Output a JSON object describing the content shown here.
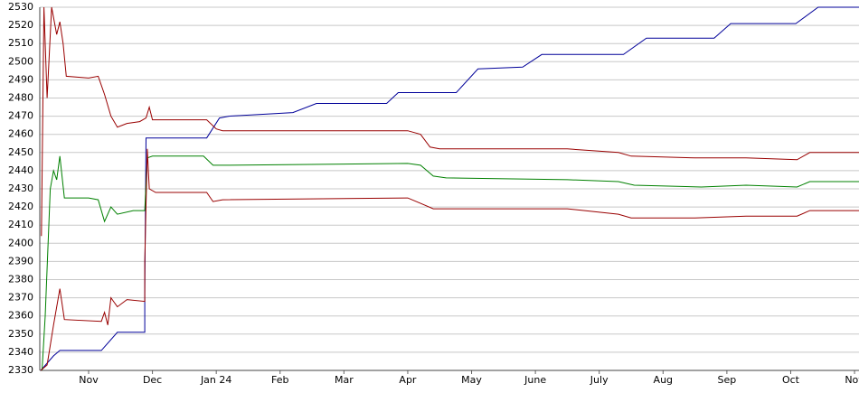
{
  "chart_data": {
    "type": "line",
    "xlim": [
      0.235,
      13.07
    ],
    "ylim": [
      2330,
      2530
    ],
    "xticks": [
      {
        "value": 1,
        "label": "Nov"
      },
      {
        "value": 2,
        "label": "Dec"
      },
      {
        "value": 3,
        "label": "Jan 24"
      },
      {
        "value": 4,
        "label": "Feb"
      },
      {
        "value": 5,
        "label": "Mar"
      },
      {
        "value": 6,
        "label": "Apr"
      },
      {
        "value": 7,
        "label": "May"
      },
      {
        "value": 8,
        "label": "June"
      },
      {
        "value": 9,
        "label": "July"
      },
      {
        "value": 10,
        "label": "Aug"
      },
      {
        "value": 11,
        "label": "Sep"
      },
      {
        "value": 12,
        "label": "Oct"
      },
      {
        "value": 13,
        "label": "Nov"
      }
    ],
    "yticks": [
      2330,
      2340,
      2350,
      2360,
      2370,
      2380,
      2390,
      2400,
      2410,
      2420,
      2430,
      2440,
      2450,
      2460,
      2470,
      2480,
      2490,
      2500,
      2510,
      2520,
      2530
    ],
    "grid": true,
    "series": [
      {
        "color": "#000099",
        "x": [
          0.25,
          0.45,
          0.55,
          1.2,
          1.45,
          1.88,
          1.88,
          1.9,
          2.85,
          3.05,
          3.2,
          3.7,
          4.2,
          4.57,
          5.67,
          5.85,
          6.76,
          7.1,
          7.8,
          8.1,
          9.38,
          9.74,
          10.8,
          11.06,
          12.08,
          12.43,
          13.07
        ],
        "values": [
          2330,
          2338,
          2341,
          2341,
          2351,
          2351,
          2373,
          2458,
          2458,
          2469,
          2470,
          2471,
          2472,
          2477,
          2477,
          2483,
          2483,
          2496,
          2497,
          2504,
          2504,
          2513,
          2513,
          2521,
          2521,
          2530,
          2530
        ]
      },
      {
        "color": "#990000",
        "x": [
          0.26,
          0.3,
          0.35,
          0.42,
          0.5,
          0.55,
          0.6,
          0.65,
          1.0,
          1.15,
          1.25,
          1.35,
          1.45,
          1.6,
          1.8,
          1.9,
          1.95,
          2.0,
          2.85,
          3.0,
          3.1,
          6.0,
          6.2,
          6.35,
          6.5,
          8.5,
          9.3,
          9.5,
          10.5,
          11.3,
          12.1,
          12.3,
          13.07
        ],
        "values": [
          2404,
          2530,
          2480,
          2530,
          2515,
          2522,
          2510,
          2492,
          2491,
          2492,
          2482,
          2470,
          2464,
          2466,
          2467,
          2469,
          2475,
          2468,
          2468,
          2463,
          2462,
          2462,
          2460,
          2453,
          2452,
          2452,
          2450,
          2448,
          2447,
          2447,
          2446,
          2450,
          2450
        ]
      },
      {
        "color": "#008000",
        "x": [
          0.27,
          0.32,
          0.4,
          0.45,
          0.5,
          0.55,
          0.62,
          1.0,
          1.15,
          1.25,
          1.35,
          1.45,
          1.7,
          1.88,
          1.92,
          2.0,
          2.8,
          2.95,
          3.1,
          6.0,
          6.2,
          6.4,
          6.6,
          8.5,
          9.3,
          9.55,
          10.6,
          11.3,
          12.1,
          12.3,
          13.07
        ],
        "values": [
          2330,
          2360,
          2430,
          2440,
          2435,
          2448,
          2425,
          2425,
          2424,
          2412,
          2420,
          2416,
          2418,
          2418,
          2447,
          2448,
          2448,
          2443,
          2443,
          2444,
          2443,
          2437,
          2436,
          2435,
          2434,
          2432,
          2431,
          2432,
          2431,
          2434,
          2434
        ]
      },
      {
        "color": "#990000",
        "x": [
          0.25,
          0.35,
          0.45,
          0.55,
          0.62,
          1.2,
          1.25,
          1.3,
          1.35,
          1.45,
          1.6,
          1.88,
          1.88,
          1.92,
          1.95,
          2.05,
          2.85,
          2.95,
          3.1,
          6.0,
          6.2,
          6.4,
          8.5,
          9.3,
          9.5,
          10.5,
          11.3,
          12.1,
          12.3,
          13.07
        ],
        "values": [
          2330,
          2333,
          2355,
          2375,
          2358,
          2357,
          2362,
          2355,
          2370,
          2365,
          2369,
          2368,
          2390,
          2452,
          2430,
          2428,
          2428,
          2423,
          2424,
          2425,
          2422,
          2419,
          2419,
          2416,
          2414,
          2414,
          2415,
          2415,
          2418,
          2418
        ]
      }
    ]
  }
}
